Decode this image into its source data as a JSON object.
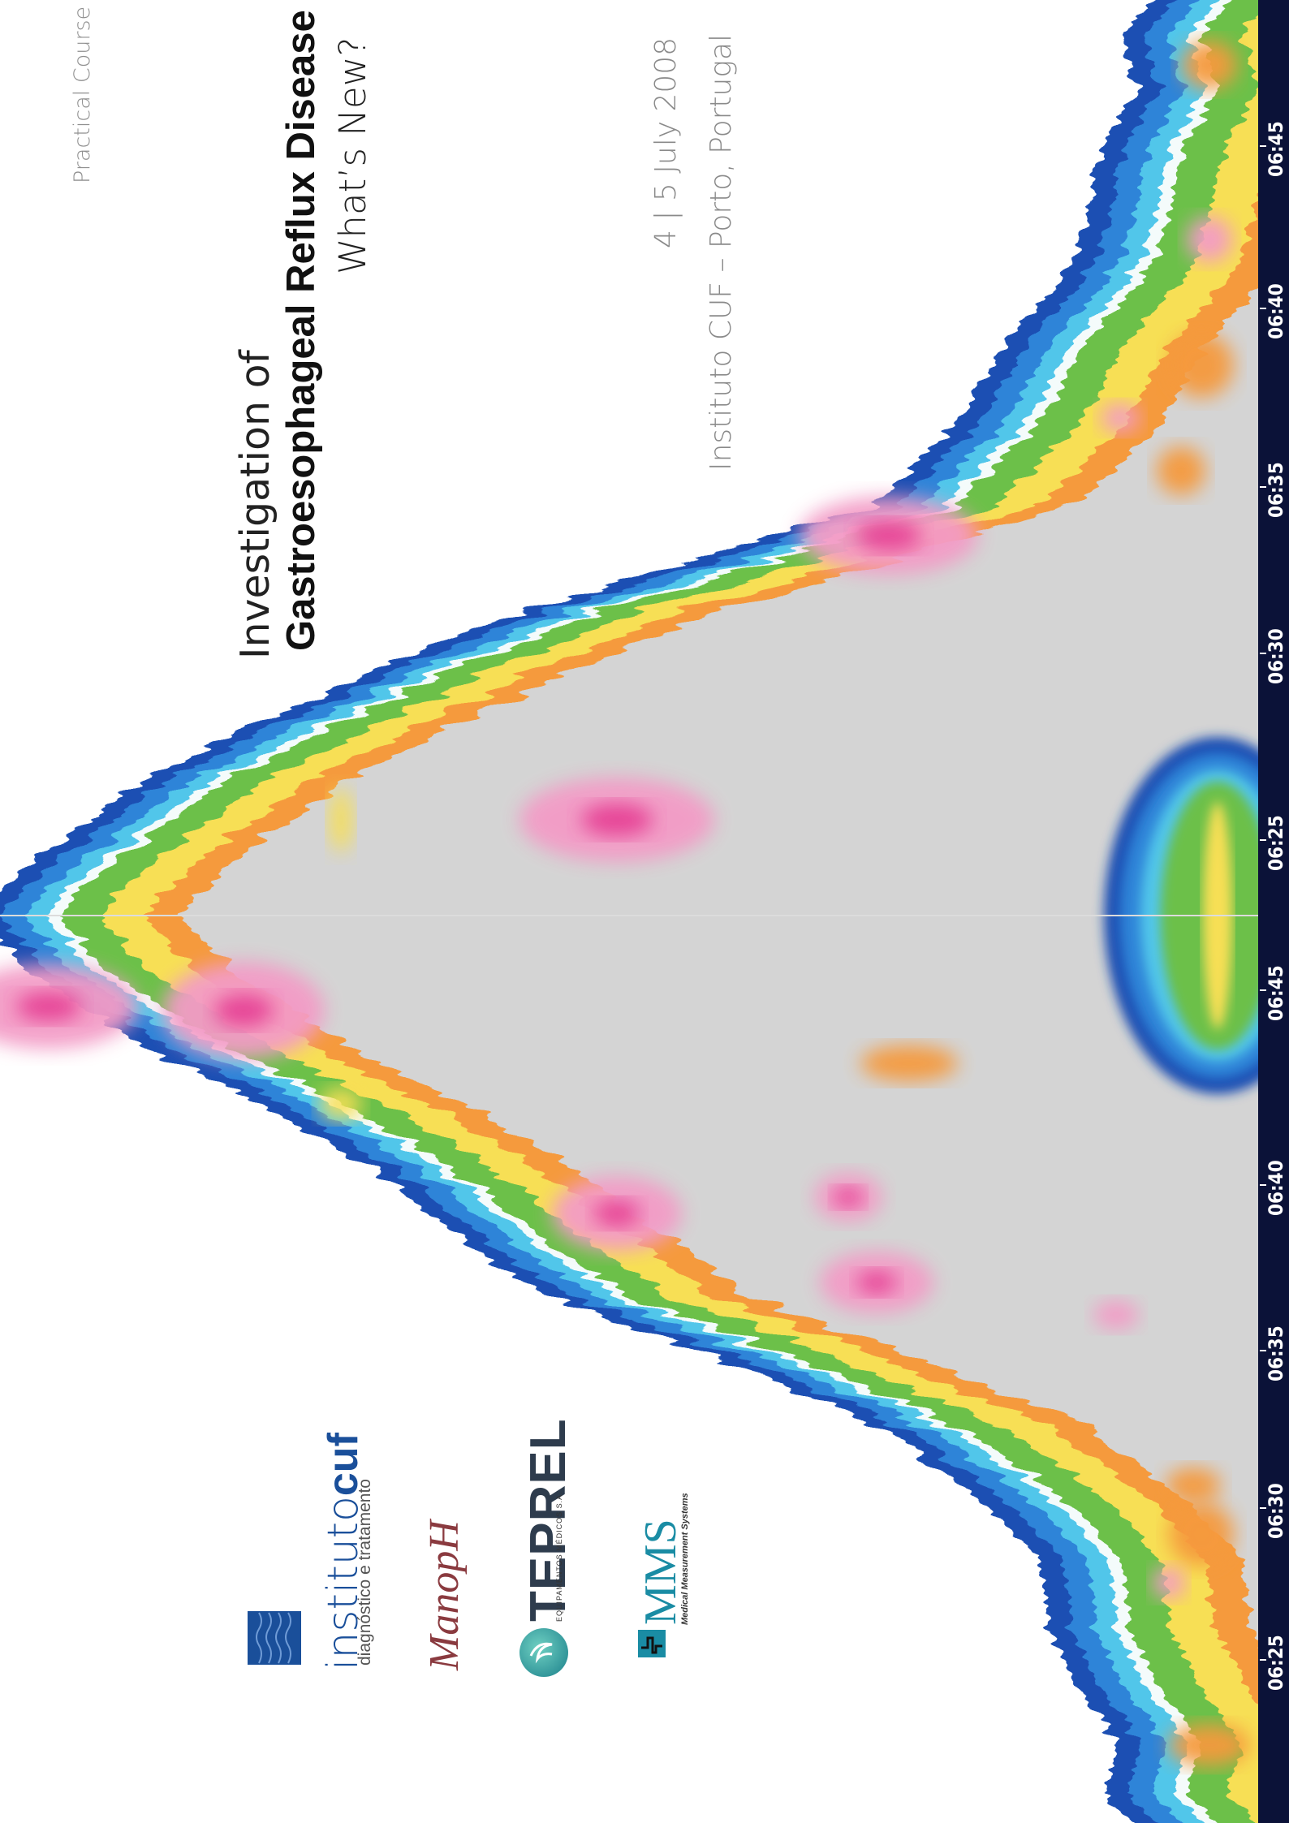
{
  "course": {
    "label": "Practical Course"
  },
  "title": {
    "line1": "Investigation of",
    "line2": "Gastroesophageal Reflux Disease",
    "line3": "What’s New?"
  },
  "event": {
    "date": "4 | 5 July 2008",
    "venue": "Instituto CUF – Porto, Portugal"
  },
  "sponsors": {
    "cuf": {
      "name_light": "instituto",
      "name_bold": "cuf",
      "tagline": "diagnóstico e tratamento"
    },
    "manoph": {
      "name": "ManopH"
    },
    "teprel": {
      "name": "TEPREL",
      "tagline": "EQUIPAMENTOS MÉDICOS S.A."
    },
    "mms": {
      "name": "MMS",
      "tagline": "Medical Measurement Systems"
    }
  },
  "time_axis": {
    "ticks": [
      "06:25",
      "06:30",
      "06:35",
      "06:40",
      "06:45",
      "06:25",
      "06:30",
      "06:35",
      "06:40",
      "06:45"
    ]
  },
  "colors": {
    "outer": "#1e4fb3",
    "blue": "#2f84d8",
    "cyan": "#51c6ea",
    "white_band": "#f4fbfb",
    "green": "#6cc04a",
    "yellow": "#f7df55",
    "orange": "#f59a3c",
    "pink": "#f39bc6",
    "magenta": "#e63f94",
    "interior": "#d4d4d4",
    "axis_bar": "#0b1238",
    "cuf_blue": "#1a4f9a"
  }
}
